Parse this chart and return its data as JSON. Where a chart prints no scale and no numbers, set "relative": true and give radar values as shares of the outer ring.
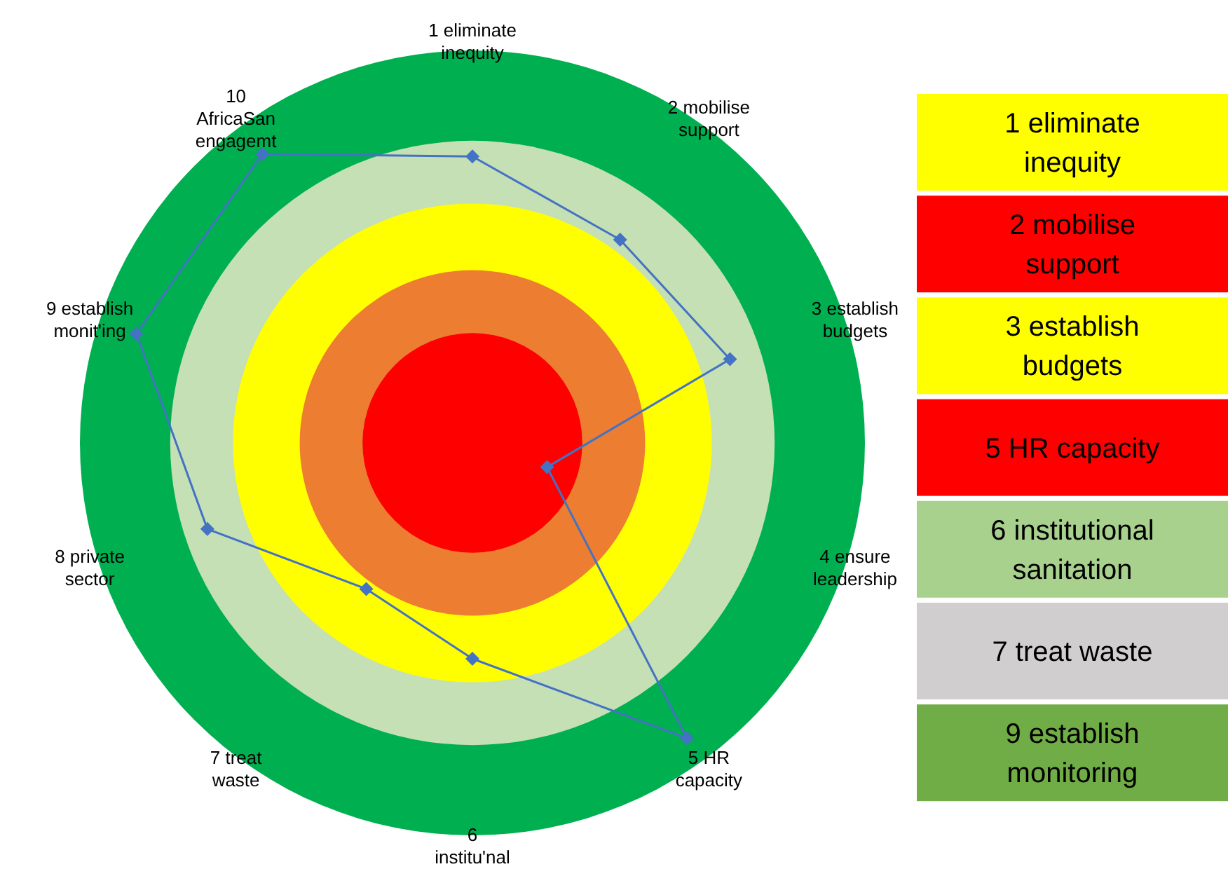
{
  "chart_data": [
    {
      "type": "radar",
      "relative": true,
      "categories": [
        "1 eliminate\ninequity",
        "2 mobilise\nsupport",
        "3 establish\nbudgets",
        "4 ensure\nleadership",
        "5 HR\ncapacity",
        "6\ninstitu'nal",
        "7 treat\nwaste",
        "8 private\nsector",
        "9 establish\nmonit'ing",
        "10\nAfricaSan\nengagemt"
      ],
      "series": [
        {
          "color": "#4472c4",
          "values": [
            0.73,
            0.64,
            0.69,
            0.2,
            0.93,
            0.55,
            0.46,
            0.71,
            0.9,
            0.91
          ]
        }
      ],
      "marker": "diamond"
    },
    {
      "type": "other",
      "categories": [
        "1 eliminate\ninequity",
        "2 mobilise\nsupport",
        "3 establish\nbudgets",
        "5 HR capacity",
        "6 institutional\nsanitation",
        "7 treat waste",
        "9 establish\nmonitoring"
      ],
      "colors": [
        "#ffff00",
        "#ff0000",
        "#ffff00",
        "#ff0000",
        "#a9d18e",
        "#d0cece",
        "#70ad47"
      ]
    }
  ]
}
